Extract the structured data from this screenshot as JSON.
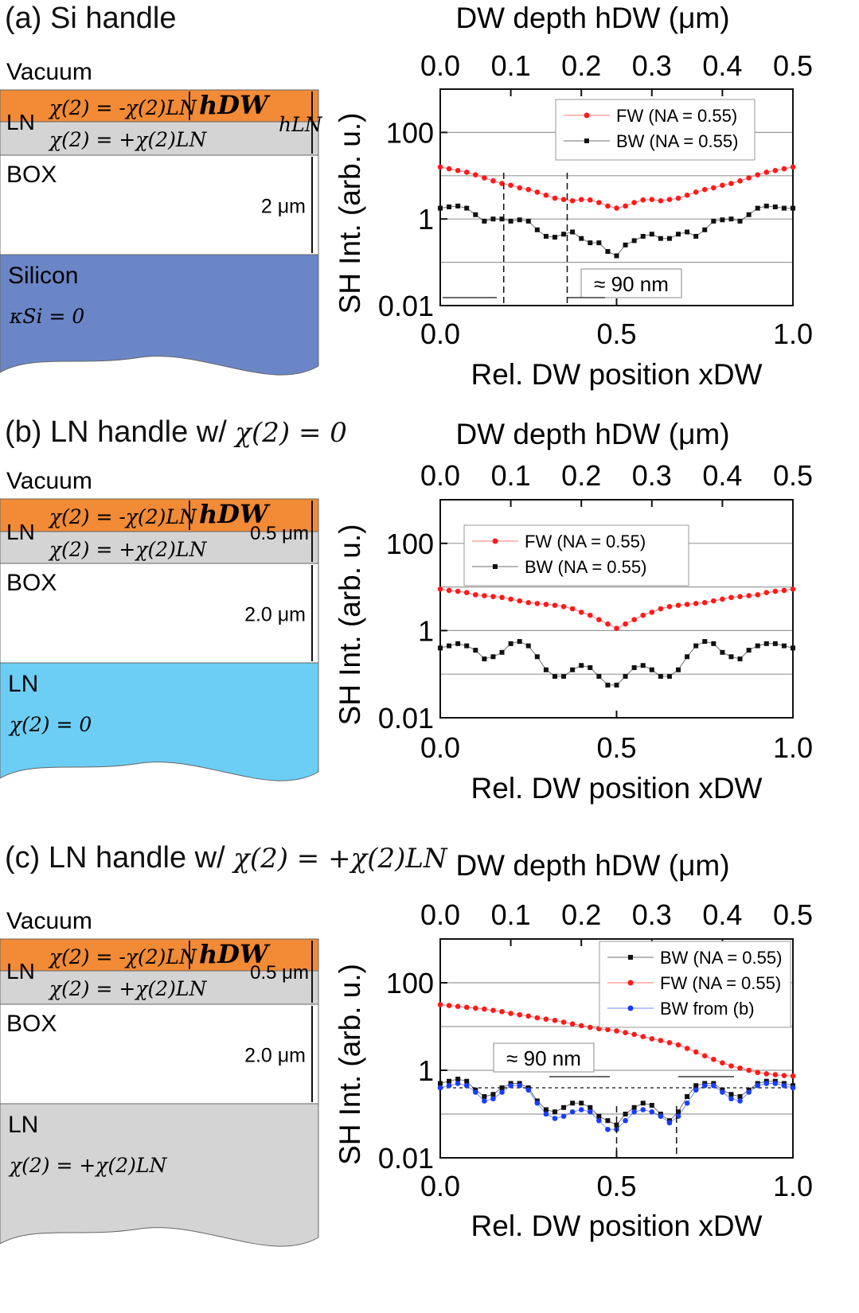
{
  "panels": {
    "a": {
      "title": "(a) Si handle",
      "stack": {
        "top_label": "Vacuum",
        "ln_label": "LN",
        "chi_top": "χ(2) = -χ(2)LN",
        "chi_bottom": "χ(2) = +χ(2)LN",
        "h_dw": "hDW",
        "h_ln": "hLN",
        "box_label": "BOX",
        "box_thickness": "2 μm",
        "handle_label": "Silicon",
        "handle_sub": "κSi = 0",
        "ln_thickness": ""
      },
      "colors": {
        "handle": "#6a86c6",
        "ln_top": "#f28a36",
        "ln_bottom": "#d4d4d4"
      }
    },
    "b": {
      "title_prefix": "(b) LN handle w/ ",
      "title_math": "χ(2) = 0",
      "stack": {
        "top_label": "Vacuum",
        "ln_label": "LN",
        "chi_top": "χ(2) = -χ(2)LN",
        "chi_bottom": "χ(2) = +χ(2)LN",
        "h_dw": "hDW",
        "ln_thickness": "0.5 μm",
        "box_label": "BOX",
        "box_thickness": "2.0 μm",
        "handle_label": "LN",
        "handle_sub": "χ(2) = 0"
      },
      "colors": {
        "handle": "#6ccef5",
        "ln_top": "#f28a36",
        "ln_bottom": "#d4d4d4"
      }
    },
    "c": {
      "title_prefix": "(c) LN handle w/ ",
      "title_math": "χ(2) = +χ(2)LN",
      "stack": {
        "top_label": "Vacuum",
        "ln_label": "LN",
        "chi_top": "χ(2) = -χ(2)LN",
        "chi_bottom": "χ(2) = +χ(2)LN",
        "h_dw": "hDW",
        "ln_thickness": "0.5 μm",
        "box_label": "BOX",
        "box_thickness": "2.0 μm",
        "handle_label": "LN",
        "handle_sub": "χ(2) = +χ(2)LN"
      },
      "colors": {
        "handle": "#d4d4d4",
        "ln_top": "#f28a36",
        "ln_bottom": "#d4d4d4"
      }
    }
  },
  "chart_data": [
    {
      "panel": "a",
      "type": "scatter",
      "xlabel": "Rel. DW position xDW",
      "ylabel": "SH Int. (arb. u.)",
      "top_axis_label": "DW depth hDW (μm)",
      "top_ticks": [
        "0.0",
        "0.1",
        "0.2",
        "0.3",
        "0.4",
        "0.5"
      ],
      "bottom_ticks": [
        "0.0",
        "0.5",
        "1.0"
      ],
      "y_ticks": [
        "0.01",
        "1",
        "100"
      ],
      "xlim": [
        0,
        1
      ],
      "ylim_log10": [
        -2,
        3
      ],
      "legend": [
        "FW (NA = 0.55)",
        "BW (NA = 0.55)"
      ],
      "annotation": "≈ 90 nm",
      "vlines": [
        0.18,
        0.36
      ],
      "hlines_log10": [
        -1,
        0,
        1,
        2
      ],
      "series": [
        {
          "name": "FW (NA = 0.55)",
          "color": "#ff1a1a",
          "x": [
            0,
            0.025,
            0.05,
            0.075,
            0.1,
            0.125,
            0.15,
            0.175,
            0.2,
            0.225,
            0.25,
            0.275,
            0.3,
            0.325,
            0.35,
            0.375,
            0.4,
            0.425,
            0.45,
            0.475,
            0.5,
            0.525,
            0.55,
            0.575,
            0.6,
            0.625,
            0.65,
            0.675,
            0.7,
            0.725,
            0.75,
            0.775,
            0.8,
            0.825,
            0.85,
            0.875,
            0.9,
            0.925,
            0.95,
            0.975,
            1
          ],
          "log10": [
            1.2,
            1.16,
            1.12,
            1.08,
            1.02,
            0.95,
            0.88,
            0.82,
            0.78,
            0.72,
            0.68,
            0.62,
            0.55,
            0.48,
            0.45,
            0.42,
            0.45,
            0.44,
            0.38,
            0.3,
            0.25,
            0.3,
            0.38,
            0.44,
            0.45,
            0.42,
            0.45,
            0.48,
            0.55,
            0.62,
            0.68,
            0.72,
            0.78,
            0.82,
            0.88,
            0.95,
            1.02,
            1.08,
            1.12,
            1.16,
            1.2
          ]
        },
        {
          "name": "BW (NA = 0.55)",
          "color": "#111111",
          "x": [
            0,
            0.025,
            0.05,
            0.075,
            0.1,
            0.125,
            0.15,
            0.175,
            0.2,
            0.225,
            0.25,
            0.275,
            0.3,
            0.325,
            0.35,
            0.375,
            0.4,
            0.425,
            0.45,
            0.475,
            0.5,
            0.525,
            0.55,
            0.575,
            0.6,
            0.625,
            0.65,
            0.675,
            0.7,
            0.725,
            0.75,
            0.775,
            0.8,
            0.825,
            0.85,
            0.875,
            0.9,
            0.925,
            0.95,
            0.975,
            1
          ],
          "log10": [
            0.25,
            0.28,
            0.3,
            0.25,
            0.1,
            -0.05,
            0.0,
            0.0,
            -0.05,
            -0.02,
            -0.05,
            -0.25,
            -0.4,
            -0.42,
            -0.35,
            -0.3,
            -0.45,
            -0.55,
            -0.55,
            -0.75,
            -0.85,
            -0.6,
            -0.5,
            -0.4,
            -0.35,
            -0.45,
            -0.45,
            -0.35,
            -0.3,
            -0.4,
            -0.25,
            -0.05,
            -0.02,
            0.0,
            -0.05,
            0.1,
            0.25,
            0.3,
            0.28,
            0.25,
            0.25
          ]
        }
      ]
    },
    {
      "panel": "b",
      "type": "scatter",
      "xlabel": "Rel. DW position xDW",
      "ylabel": "SH Int. (arb. u.)",
      "top_axis_label": "DW depth hDW (μm)",
      "top_ticks": [
        "0.0",
        "0.1",
        "0.2",
        "0.3",
        "0.4",
        "0.5"
      ],
      "bottom_ticks": [
        "0.0",
        "0.5",
        "1.0"
      ],
      "y_ticks": [
        "0.01",
        "1",
        "100"
      ],
      "xlim": [
        0,
        1
      ],
      "ylim_log10": [
        -2,
        3
      ],
      "legend": [
        "FW (NA = 0.55)",
        "BW (NA = 0.55)"
      ],
      "hlines_log10": [
        -1,
        0,
        1,
        2
      ],
      "series": [
        {
          "name": "FW (NA = 0.55)",
          "color": "#ff1a1a",
          "x": [
            0,
            0.025,
            0.05,
            0.075,
            0.1,
            0.125,
            0.15,
            0.175,
            0.2,
            0.225,
            0.25,
            0.275,
            0.3,
            0.325,
            0.35,
            0.375,
            0.4,
            0.425,
            0.45,
            0.475,
            0.5,
            0.525,
            0.55,
            0.575,
            0.6,
            0.625,
            0.65,
            0.675,
            0.7,
            0.725,
            0.75,
            0.775,
            0.8,
            0.825,
            0.85,
            0.875,
            0.9,
            0.925,
            0.95,
            0.975,
            1
          ],
          "log10": [
            0.95,
            0.92,
            0.9,
            0.87,
            0.82,
            0.8,
            0.78,
            0.76,
            0.72,
            0.68,
            0.64,
            0.62,
            0.6,
            0.58,
            0.55,
            0.5,
            0.42,
            0.35,
            0.25,
            0.15,
            0.05,
            0.15,
            0.25,
            0.35,
            0.42,
            0.5,
            0.55,
            0.58,
            0.6,
            0.62,
            0.64,
            0.68,
            0.72,
            0.76,
            0.78,
            0.8,
            0.82,
            0.87,
            0.9,
            0.92,
            0.95
          ]
        },
        {
          "name": "BW (NA = 0.55)",
          "color": "#111111",
          "x": [
            0,
            0.025,
            0.05,
            0.075,
            0.1,
            0.125,
            0.15,
            0.175,
            0.2,
            0.225,
            0.25,
            0.275,
            0.3,
            0.325,
            0.35,
            0.375,
            0.4,
            0.425,
            0.45,
            0.475,
            0.5,
            0.525,
            0.55,
            0.575,
            0.6,
            0.625,
            0.65,
            0.675,
            0.7,
            0.725,
            0.75,
            0.775,
            0.8,
            0.825,
            0.85,
            0.875,
            0.9,
            0.925,
            0.95,
            0.975,
            1
          ],
          "log10": [
            -0.4,
            -0.35,
            -0.3,
            -0.35,
            -0.45,
            -0.65,
            -0.6,
            -0.5,
            -0.3,
            -0.25,
            -0.35,
            -0.6,
            -0.9,
            -1.05,
            -1.05,
            -0.9,
            -0.8,
            -0.85,
            -1.05,
            -1.25,
            -1.25,
            -1.05,
            -0.85,
            -0.8,
            -0.9,
            -1.05,
            -1.05,
            -0.9,
            -0.6,
            -0.35,
            -0.25,
            -0.3,
            -0.5,
            -0.6,
            -0.65,
            -0.45,
            -0.35,
            -0.3,
            -0.3,
            -0.35,
            -0.4
          ]
        }
      ]
    },
    {
      "panel": "c",
      "type": "scatter",
      "xlabel": "Rel. DW position xDW",
      "ylabel": "SH Int. (arb. u.)",
      "top_axis_label": "DW depth hDW (μm)",
      "top_ticks": [
        "0.0",
        "0.1",
        "0.2",
        "0.3",
        "0.4",
        "0.5"
      ],
      "bottom_ticks": [
        "0.0",
        "0.5",
        "1.0"
      ],
      "y_ticks": [
        "0.01",
        "1",
        "100"
      ],
      "xlim": [
        0,
        1
      ],
      "ylim_log10": [
        -2,
        3
      ],
      "legend": [
        "BW (NA = 0.55)",
        "FW (NA = 0.55)",
        "BW from (b)"
      ],
      "annotation": "≈ 90 nm",
      "vlines": [
        0.5,
        0.67
      ],
      "dashed_hline_log10": -0.4,
      "hlines_log10": [
        -1,
        0,
        1,
        2
      ],
      "series": [
        {
          "name": "BW (NA = 0.55)",
          "color": "#111111",
          "x": [
            0,
            0.025,
            0.05,
            0.075,
            0.1,
            0.125,
            0.15,
            0.175,
            0.2,
            0.225,
            0.25,
            0.275,
            0.3,
            0.325,
            0.35,
            0.375,
            0.4,
            0.425,
            0.45,
            0.475,
            0.5,
            0.525,
            0.55,
            0.575,
            0.6,
            0.625,
            0.65,
            0.675,
            0.7,
            0.725,
            0.75,
            0.775,
            0.8,
            0.825,
            0.85,
            0.875,
            0.9,
            0.925,
            0.95,
            0.975,
            1
          ],
          "log10": [
            -0.3,
            -0.25,
            -0.2,
            -0.25,
            -0.45,
            -0.6,
            -0.55,
            -0.4,
            -0.3,
            -0.3,
            -0.4,
            -0.7,
            -0.9,
            -0.95,
            -0.85,
            -0.75,
            -0.75,
            -0.85,
            -1.05,
            -1.15,
            -1.25,
            -1.0,
            -0.85,
            -0.75,
            -0.8,
            -1.0,
            -1.15,
            -0.95,
            -0.6,
            -0.35,
            -0.3,
            -0.3,
            -0.45,
            -0.55,
            -0.6,
            -0.45,
            -0.3,
            -0.25,
            -0.25,
            -0.3,
            -0.35
          ]
        },
        {
          "name": "FW (NA = 0.55)",
          "color": "#ff1a1a",
          "x": [
            0,
            0.025,
            0.05,
            0.075,
            0.1,
            0.125,
            0.15,
            0.175,
            0.2,
            0.225,
            0.25,
            0.275,
            0.3,
            0.325,
            0.35,
            0.375,
            0.4,
            0.425,
            0.45,
            0.475,
            0.5,
            0.525,
            0.55,
            0.575,
            0.6,
            0.625,
            0.65,
            0.675,
            0.7,
            0.725,
            0.75,
            0.775,
            0.8,
            0.825,
            0.85,
            0.875,
            0.9,
            0.925,
            0.95,
            0.975,
            1
          ],
          "log10": [
            1.5,
            1.48,
            1.46,
            1.44,
            1.42,
            1.4,
            1.37,
            1.34,
            1.3,
            1.27,
            1.24,
            1.2,
            1.17,
            1.14,
            1.1,
            1.06,
            1.02,
            0.98,
            0.95,
            0.93,
            0.9,
            0.86,
            0.82,
            0.77,
            0.72,
            0.68,
            0.63,
            0.58,
            0.5,
            0.42,
            0.33,
            0.25,
            0.17,
            0.1,
            0.05,
            0.0,
            -0.05,
            -0.08,
            -0.1,
            -0.12,
            -0.13
          ]
        },
        {
          "name": "BW from (b)",
          "color": "#1a3dff",
          "x": [
            0,
            0.025,
            0.05,
            0.075,
            0.1,
            0.125,
            0.15,
            0.175,
            0.2,
            0.225,
            0.25,
            0.275,
            0.3,
            0.325,
            0.35,
            0.375,
            0.4,
            0.425,
            0.45,
            0.475,
            0.5,
            0.525,
            0.55,
            0.575,
            0.6,
            0.625,
            0.65,
            0.675,
            0.7,
            0.725,
            0.75,
            0.775,
            0.8,
            0.825,
            0.85,
            0.875,
            0.9,
            0.925,
            0.95,
            0.975,
            1
          ],
          "log10": [
            -0.4,
            -0.35,
            -0.3,
            -0.35,
            -0.5,
            -0.7,
            -0.65,
            -0.5,
            -0.35,
            -0.35,
            -0.45,
            -0.75,
            -1.0,
            -1.1,
            -1.05,
            -0.95,
            -0.9,
            -0.95,
            -1.15,
            -1.35,
            -1.35,
            -1.15,
            -0.95,
            -0.9,
            -0.95,
            -1.05,
            -1.2,
            -1.05,
            -0.75,
            -0.45,
            -0.35,
            -0.35,
            -0.5,
            -0.65,
            -0.7,
            -0.5,
            -0.35,
            -0.3,
            -0.3,
            -0.35,
            -0.4
          ]
        }
      ]
    }
  ]
}
